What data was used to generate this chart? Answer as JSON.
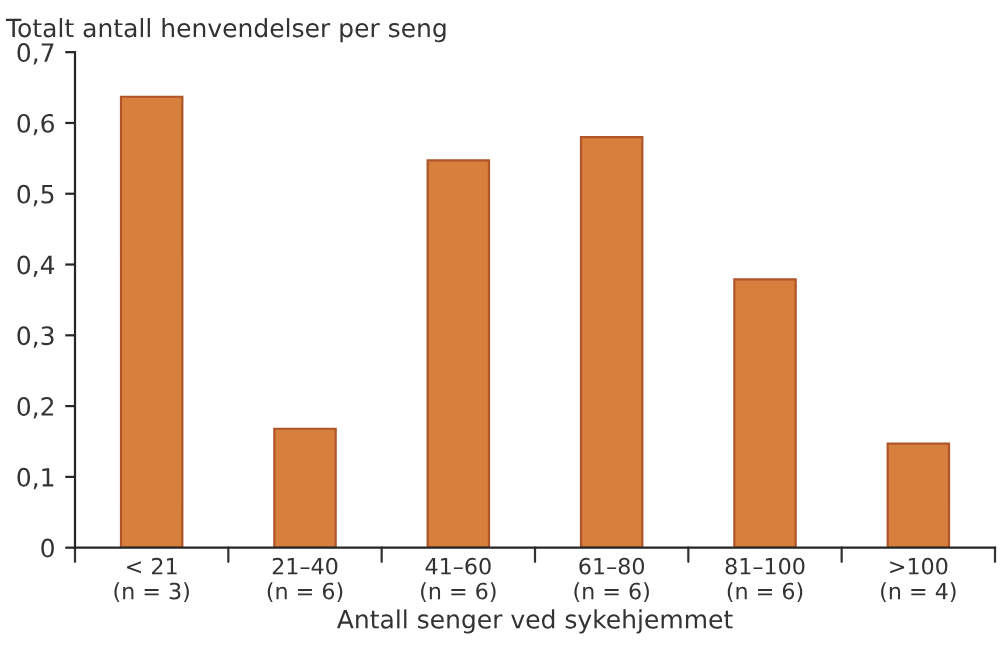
{
  "chart_data": {
    "type": "bar",
    "ylabel": "Totalt antall henvendelser per seng",
    "xlabel": "Antall senger ved sykehjemmet",
    "categories": [
      "< 21\n(n = 3)",
      "21–40\n(n = 6)",
      "41–60\n(n = 6)",
      "61–80\n(n = 6)",
      "81–100\n(n = 6)",
      ">100\n(n = 4)"
    ],
    "values": [
      0.637,
      0.168,
      0.547,
      0.58,
      0.379,
      0.147
    ],
    "color": "#d77f3c",
    "ylim": [
      0,
      0.7
    ],
    "yticks": [
      {
        "value": 0,
        "label": "0"
      },
      {
        "value": 0.1,
        "label": "0,1"
      },
      {
        "value": 0.2,
        "label": "0,2"
      },
      {
        "value": 0.3,
        "label": "0,3"
      },
      {
        "value": 0.4,
        "label": "0,4"
      },
      {
        "value": 0.5,
        "label": "0,5"
      },
      {
        "value": 0.6,
        "label": "0,6"
      },
      {
        "value": 0.7,
        "label": "0,7"
      }
    ],
    "grid": false,
    "legend": false
  }
}
